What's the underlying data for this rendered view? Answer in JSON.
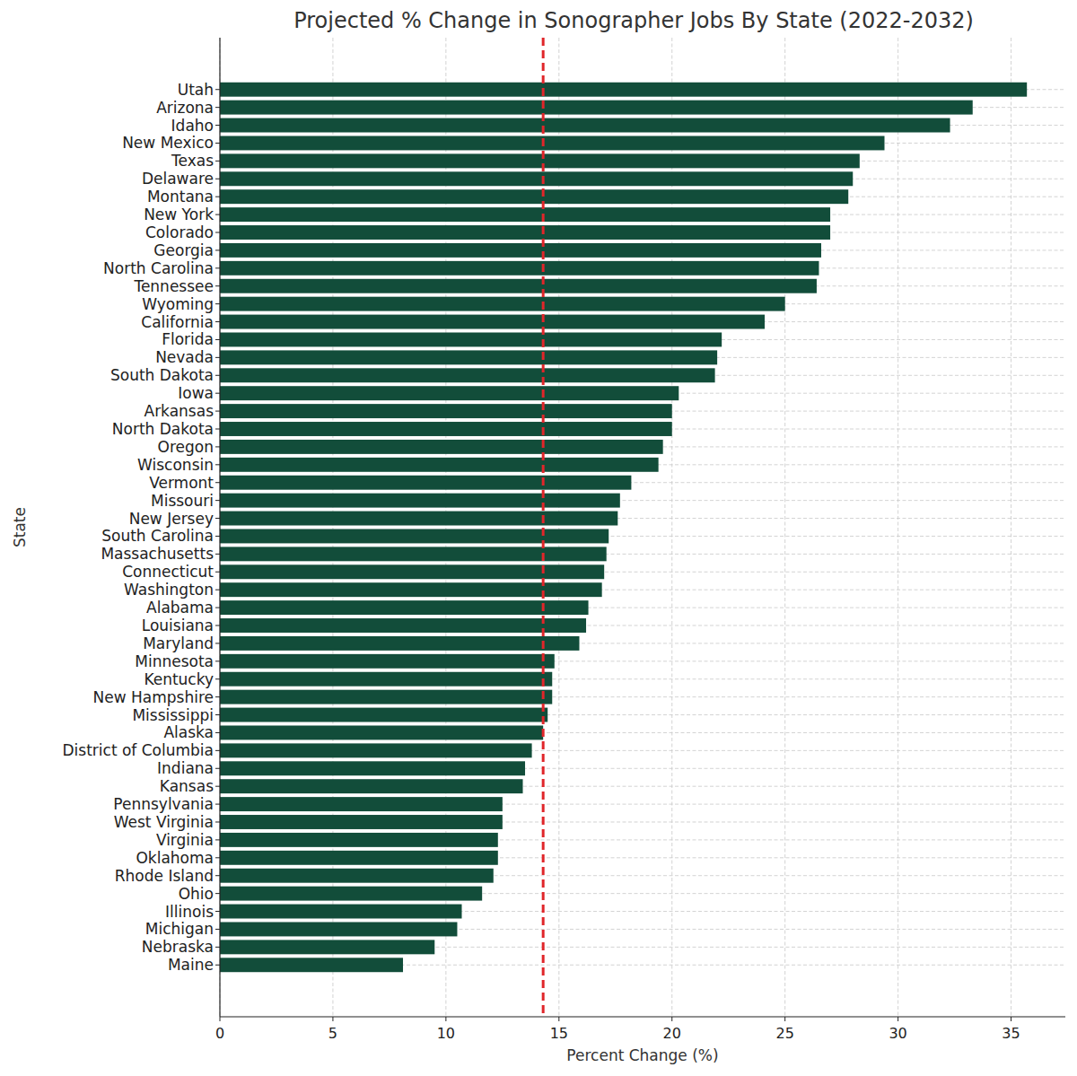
{
  "chart_data": {
    "type": "bar",
    "orientation": "horizontal",
    "title": "Projected % Change in Sonographer Jobs By State (2022-2032)",
    "x_label": "Percent Change (%)",
    "y_label": "State",
    "categories": [
      "Utah",
      "Arizona",
      "Idaho",
      "New Mexico",
      "Texas",
      "Delaware",
      "Montana",
      "New York",
      "Colorado",
      "Georgia",
      "North Carolina",
      "Tennessee",
      "Wyoming",
      "California",
      "Florida",
      "Nevada",
      "South Dakota",
      "Iowa",
      "Arkansas",
      "North Dakota",
      "Oregon",
      "Wisconsin",
      "Vermont",
      "Missouri",
      "New Jersey",
      "South Carolina",
      "Massachusetts",
      "Connecticut",
      "Washington",
      "Alabama",
      "Louisiana",
      "Maryland",
      "Minnesota",
      "Kentucky",
      "New Hampshire",
      "Mississippi",
      "Alaska",
      "District of Columbia",
      "Indiana",
      "Kansas",
      "Pennsylvania",
      "West Virginia",
      "Virginia",
      "Oklahoma",
      "Rhode Island",
      "Ohio",
      "Illinois",
      "Michigan",
      "Nebraska",
      "Maine"
    ],
    "values": [
      35.7,
      33.3,
      32.3,
      29.4,
      28.3,
      28.0,
      27.8,
      27.0,
      27.0,
      26.6,
      26.5,
      26.4,
      25.0,
      24.1,
      22.2,
      22.0,
      21.9,
      20.3,
      20.0,
      20.0,
      19.6,
      19.4,
      18.2,
      17.7,
      17.6,
      17.2,
      17.1,
      17.0,
      16.9,
      16.3,
      16.2,
      15.9,
      14.8,
      14.7,
      14.7,
      14.5,
      14.3,
      13.8,
      13.5,
      13.4,
      12.5,
      12.5,
      12.3,
      12.3,
      12.1,
      11.6,
      10.7,
      10.5,
      9.5,
      8.1
    ],
    "color": "#124d3a",
    "vline": {
      "value": 14.3,
      "color": "#e0262a",
      "line_style": "dashed"
    },
    "xlim": [
      0,
      37.4
    ],
    "xticks": [
      0,
      5,
      10,
      15,
      20,
      25,
      30,
      35
    ],
    "grid": true
  }
}
